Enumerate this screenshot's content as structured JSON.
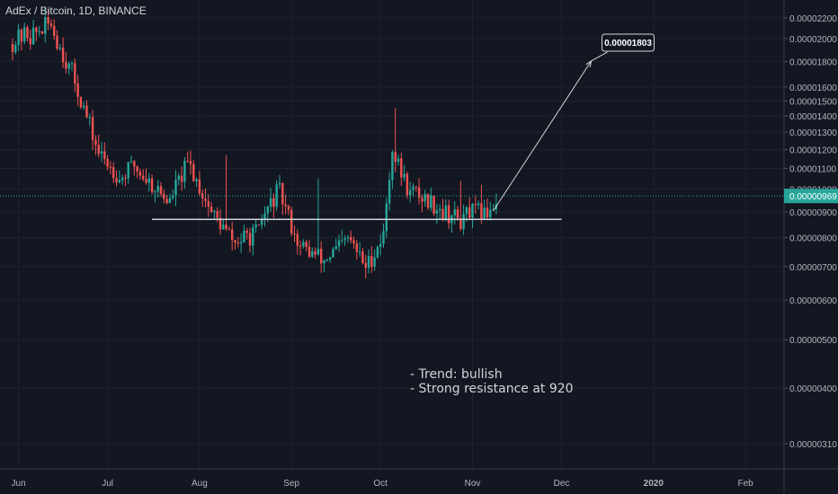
{
  "header": {
    "title": "AdEx / Bitcoin, 1D, BINANCE"
  },
  "notes": {
    "line1": "- Trend: bullish",
    "line2": "- Strong resistance at 920"
  },
  "chart_data": {
    "type": "candlestick",
    "title": "AdEx / Bitcoin, 1D, BINANCE",
    "x_ticks": [
      {
        "label": "Jun",
        "day": 2
      },
      {
        "label": "Jul",
        "day": 32
      },
      {
        "label": "Aug",
        "day": 63
      },
      {
        "label": "Sep",
        "day": 94
      },
      {
        "label": "Oct",
        "day": 124
      },
      {
        "label": "Nov",
        "day": 155
      },
      {
        "label": "Dec",
        "day": 185
      },
      {
        "label": "2020",
        "day": 216
      },
      {
        "label": "Feb",
        "day": 247
      }
    ],
    "y_axis": {
      "scale": "log",
      "labels": [
        "0.00002200",
        "0.00002000",
        "0.00001800",
        "0.00001600",
        "0.00001500",
        "0.00001400",
        "0.00001300",
        "0.00001200",
        "0.00001100",
        "0.00001000",
        "0.00000900",
        "0.00000800",
        "0.00000700",
        "0.00000600",
        "0.00000500",
        "0.00000400",
        "0.00000310"
      ],
      "values": [
        2.2e-05,
        2e-05,
        1.8e-05,
        1.6e-05,
        1.5e-05,
        1.4e-05,
        1.3e-05,
        1.2e-05,
        1.1e-05,
        1e-05,
        9e-06,
        8e-06,
        7e-06,
        6e-06,
        5e-06,
        4e-06,
        3.1e-06
      ],
      "range": [
        2.9e-06,
        2.32e-05
      ]
    },
    "last_price": {
      "label": "0.00000969",
      "value": 9.69e-06,
      "color": "#26a69a"
    },
    "support_line": {
      "value": 8.7e-06,
      "day_start": 47,
      "day_end": 185,
      "color": "#d1d4dc"
    },
    "projection": {
      "from_day": 162,
      "from_value": 9.05e-06,
      "to_day": 195,
      "to_value": 1.803e-05,
      "label": "0.00001803"
    },
    "colors": {
      "up": "#26a69a",
      "down": "#ef5350",
      "background": "#131722",
      "grid": "#1e222d",
      "text": "#b2b5be"
    },
    "segments": [
      {
        "days": 6,
        "close": 2.05e-05
      },
      {
        "days": 8,
        "close": 2.15e-05
      },
      {
        "days": 6,
        "close": 1.75e-05
      },
      {
        "days": 10,
        "close": 1.18e-05
      },
      {
        "days": 6,
        "close": 1.08e-05
      },
      {
        "days": 6,
        "close": 1.12e-05
      },
      {
        "days": 12,
        "close": 9.4e-06
      },
      {
        "days": 6,
        "close": 1.12e-05
      },
      {
        "days": 8,
        "close": 9e-06
      },
      {
        "days": 8,
        "close": 7.8e-06
      },
      {
        "days": 8,
        "close": 8.2e-06
      },
      {
        "days": 6,
        "close": 9.8e-06
      },
      {
        "days": 8,
        "close": 7.6e-06
      },
      {
        "days": 8,
        "close": 7.2e-06
      },
      {
        "days": 8,
        "close": 7.9e-06
      },
      {
        "days": 6,
        "close": 7e-06
      },
      {
        "days": 6,
        "close": 8.1e-06
      },
      {
        "days": 3,
        "close": 1.22e-05
      },
      {
        "days": 6,
        "close": 9.8e-06
      },
      {
        "days": 10,
        "close": 9.2e-06
      },
      {
        "days": 8,
        "close": 8.6e-06
      },
      {
        "days": 6,
        "close": 9e-06
      },
      {
        "days": 5,
        "close": 9.5e-06
      }
    ],
    "wick_spikes": [
      {
        "day": 129,
        "high": 1.45e-05
      },
      {
        "day": 103,
        "high": 1.05e-05
      },
      {
        "day": 151,
        "high": 1.04e-05
      },
      {
        "day": 158,
        "high": 1.02e-05
      },
      {
        "day": 72,
        "high": 1.17e-05
      }
    ]
  }
}
